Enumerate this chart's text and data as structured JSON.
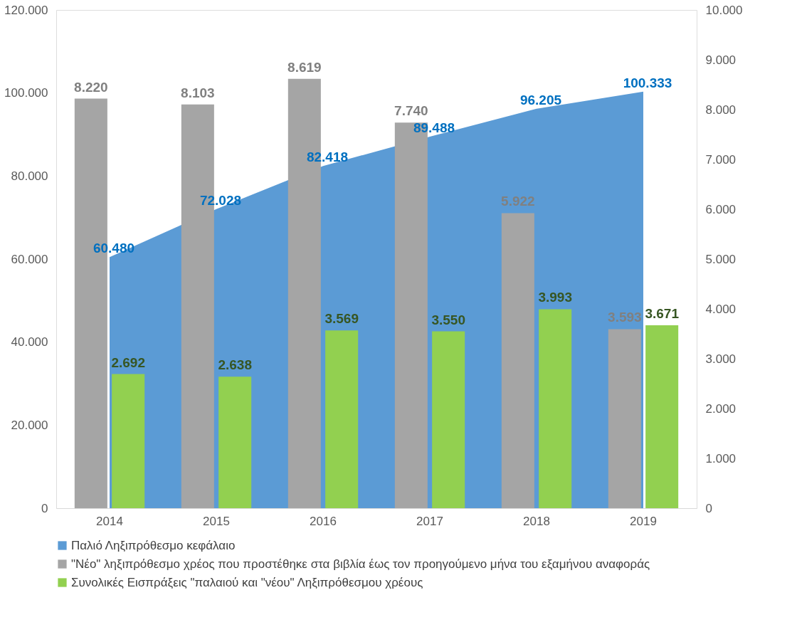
{
  "chart_data": {
    "type": "bar",
    "categories": [
      "2014",
      "2015",
      "2016",
      "2017",
      "2018",
      "2019"
    ],
    "series": [
      {
        "name": "Παλιό Ληξιπρόθεσμο κεφάλαιο",
        "type": "area",
        "color": "#5b9bd5",
        "values": [
          60480,
          72028,
          82418,
          89488,
          96205,
          100333
        ],
        "value_labels": [
          "60.480",
          "72.028",
          "82.418",
          "89.488",
          "96.205",
          "100.333"
        ]
      },
      {
        "name": "\"Νέο\" ληξιπρόθεσμο χρέος που προστέθηκε στα βιβλία  έως τον προηγούμενο μήνα του εξαμήνου αναφοράς",
        "axis": "y2",
        "color": "#a5a5a5",
        "values": [
          8220,
          8103,
          8619,
          7740,
          5922,
          3593
        ],
        "value_labels": [
          "8.220",
          "8.103",
          "8.619",
          "7.740",
          "5.922",
          "3.593"
        ]
      },
      {
        "name": "Συνολικές Εισπράξεις \"παλαιού και \"νέου\" Ληξιπρόθεσμου χρέους",
        "axis": "y2",
        "color": "#92d050",
        "values": [
          2692,
          2638,
          3569,
          3550,
          3993,
          3671
        ],
        "value_labels": [
          "2.692",
          "2.638",
          "3.569",
          "3.550",
          "3.993",
          "3.671"
        ]
      }
    ],
    "ylim": [
      0,
      120000
    ],
    "yticks": [
      0,
      {
        "value": 20000,
        "label": "20.000"
      },
      {
        "value": 40000,
        "label": "40.000"
      },
      {
        "value": 60000,
        "label": "60.000"
      },
      {
        "value": 80000,
        "label": "80.000"
      },
      {
        "value": 100000,
        "label": "100.000"
      },
      {
        "value": 120000,
        "label": "120.000"
      }
    ],
    "y2lim": [
      0,
      10000
    ],
    "y2ticks": [
      0,
      {
        "value": 1000,
        "label": "1.000"
      },
      {
        "value": 2000,
        "label": "2.000"
      },
      {
        "value": 3000,
        "label": "3.000"
      },
      {
        "value": 4000,
        "label": "4.000"
      },
      {
        "value": 5000,
        "label": "5.000"
      },
      {
        "value": 6000,
        "label": "6.000"
      },
      {
        "value": 7000,
        "label": "7.000"
      },
      {
        "value": 8000,
        "label": "8.000"
      },
      {
        "value": 9000,
        "label": "9.000"
      },
      {
        "value": 10000,
        "label": "10.000"
      }
    ],
    "grid": false,
    "legend": "bottom"
  }
}
